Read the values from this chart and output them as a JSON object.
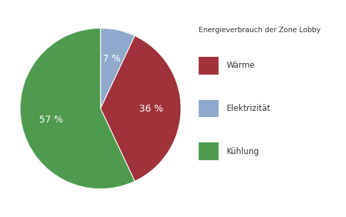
{
  "slices": [
    7,
    36,
    57
  ],
  "labels": [
    "Elektrizität",
    "Wärme",
    "Kühlung"
  ],
  "colors": [
    "#8fa8cc",
    "#a0323c",
    "#4e9a4e"
  ],
  "pct_labels": [
    "7 %",
    "36 %",
    "57 %"
  ],
  "legend_title": "Energieverbrauch der Zone Lobby",
  "startangle": 90,
  "background_color": "#ffffff",
  "pct_label_color": "#ffffff",
  "pct_fontsize": 10,
  "legend_order": [
    1,
    0,
    2
  ],
  "legend_labels": [
    "Wärme",
    "Elektrizität",
    "Kühlung"
  ],
  "legend_colors": [
    "#a0323c",
    "#8fa8cc",
    "#4e9a4e"
  ]
}
